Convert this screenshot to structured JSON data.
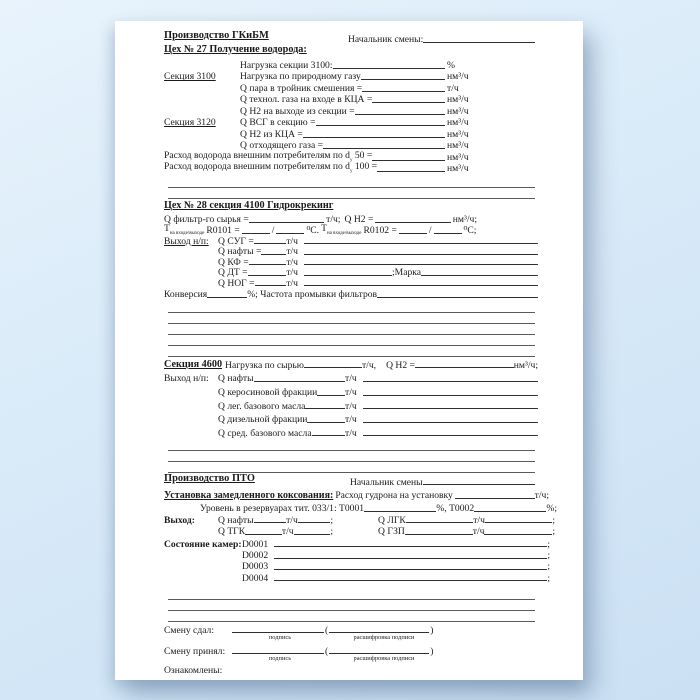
{
  "meta": {
    "canvas_bg": "#d6e9f8",
    "page_bg": "#ffffff",
    "text_color": "#1a1a1a",
    "field_line_color": "#2f2f2f",
    "ruled_line_color": "#5a5a5a"
  },
  "top": {
    "title": "Производство ГКиБМ",
    "chief_label": "Начальник смены:"
  },
  "s27": {
    "heading": "Цех № 27 Получение водорода:",
    "rows": [
      {
        "prefix": "",
        "label": "Нагрузка секции 3100:",
        "unit": "%"
      },
      {
        "prefix": "Секция 3100",
        "label": "Нагрузка по природному газу",
        "unit": "нм³/ч"
      },
      {
        "prefix": "",
        "label": "Q пара в тройник смешения =",
        "unit": "т/ч"
      },
      {
        "prefix": "",
        "label": "Q технол. газа на входе в КЦА =",
        "unit": "нм³/ч"
      },
      {
        "prefix": "",
        "label": "Q H2 на выходе из секции =",
        "unit": "нм³/ч"
      },
      {
        "prefix": "Секция 3120",
        "label": "Q ВСГ в секцию =",
        "unit": "нм³/ч"
      },
      {
        "prefix": "",
        "label": "Q H2 из КЦА =",
        "unit": "нм³/ч"
      },
      {
        "prefix": "",
        "label": "Q отходящего газа =",
        "unit": "нм³/ч"
      }
    ],
    "wide_rows": [
      {
        "label": "Расход водорода внешним потребителям по d",
        "sub": "у",
        "label2": " 50 =",
        "unit": "нм³/ч"
      },
      {
        "label": "Расход водорода внешним потребителям по d",
        "sub": "у",
        "label2": " 100 =",
        "unit": "нм³/ч"
      }
    ]
  },
  "s28": {
    "heading": "Цех № 28 секция 4100 Гидрокрекинг",
    "feed_label": "Q фильтр-го сырья =",
    "feed_unit": "т/ч;",
    "h2_label": "Q H2 =",
    "h2_unit": "нм³/ч;",
    "t_prefix": "Т",
    "t_sub": "на входе/выходе",
    "r0101": "R0101 =",
    "r0102": "R0102 =",
    "slash": "/",
    "deg1": "⁰С.",
    "deg2": "⁰С;",
    "out_label": "Выход н/п:",
    "rows": [
      {
        "label": "Q СУГ =",
        "unit": "т/ч"
      },
      {
        "label": "Q нафты =",
        "unit": "т/ч"
      },
      {
        "label": "Q КФ =",
        "unit": "т/ч"
      },
      {
        "label": "Q ДТ =",
        "unit": "т/ч",
        "extra": ";Марка"
      },
      {
        "label": "Q НОГ =",
        "unit": "т/ч"
      }
    ],
    "conversion_label": "Конверсия",
    "conversion_rest": "%; Частота промывки фильтров"
  },
  "s4600": {
    "prefix": "Секция 4600",
    "load_label": "Нагрузка по сырью",
    "load_unit": "т/ч,",
    "h2_label": "Q H2 =",
    "h2_unit": "нм³/ч;",
    "out_label": "Выход н/п:",
    "rows": [
      {
        "label": "Q нафты",
        "unit": "т/ч"
      },
      {
        "label": "Q керосиновой фракции",
        "unit": "т/ч"
      },
      {
        "label": "Q лег. базового масла",
        "unit": "т/ч"
      },
      {
        "label": "Q дизельной фракции",
        "unit": "т/ч"
      },
      {
        "label": "Q сред. базового масла",
        "unit": "т/ч"
      }
    ]
  },
  "pto": {
    "title": "Производство ПТО",
    "chief_label": "Начальник смены",
    "unit_heading": "Установка замедленного коксования:",
    "tar_label": "Расход гудрона на установку",
    "tar_unit": "т/ч;",
    "level_label": "Уровень в резервуарах тит. 033/1: Т0001",
    "level_mid": "%, Т0002",
    "level_end": "%;",
    "out_label": "Выход:",
    "out_rows": [
      {
        "l1": "Q нафты",
        "u1": "т/ч",
        "l2": "Q ЛГК",
        "u2": "т/ч"
      },
      {
        "l1": "Q ТГК",
        "u1": "т/ч",
        "l2": "Q ГЗП",
        "u2": "т/ч"
      }
    ],
    "chambers_label": "Состояние камер:",
    "chambers": [
      "D0001",
      "D0002",
      "D0003",
      "D0004"
    ],
    "semi": ";"
  },
  "signoff": {
    "handed_label": "Смену сдал:",
    "accepted_label": "Смену принял:",
    "open_paren": "(",
    "close_paren": ")",
    "sig_caption": "подпись",
    "decode_caption": "расшифровка подписи",
    "ack_label": "Ознакомлены:"
  }
}
